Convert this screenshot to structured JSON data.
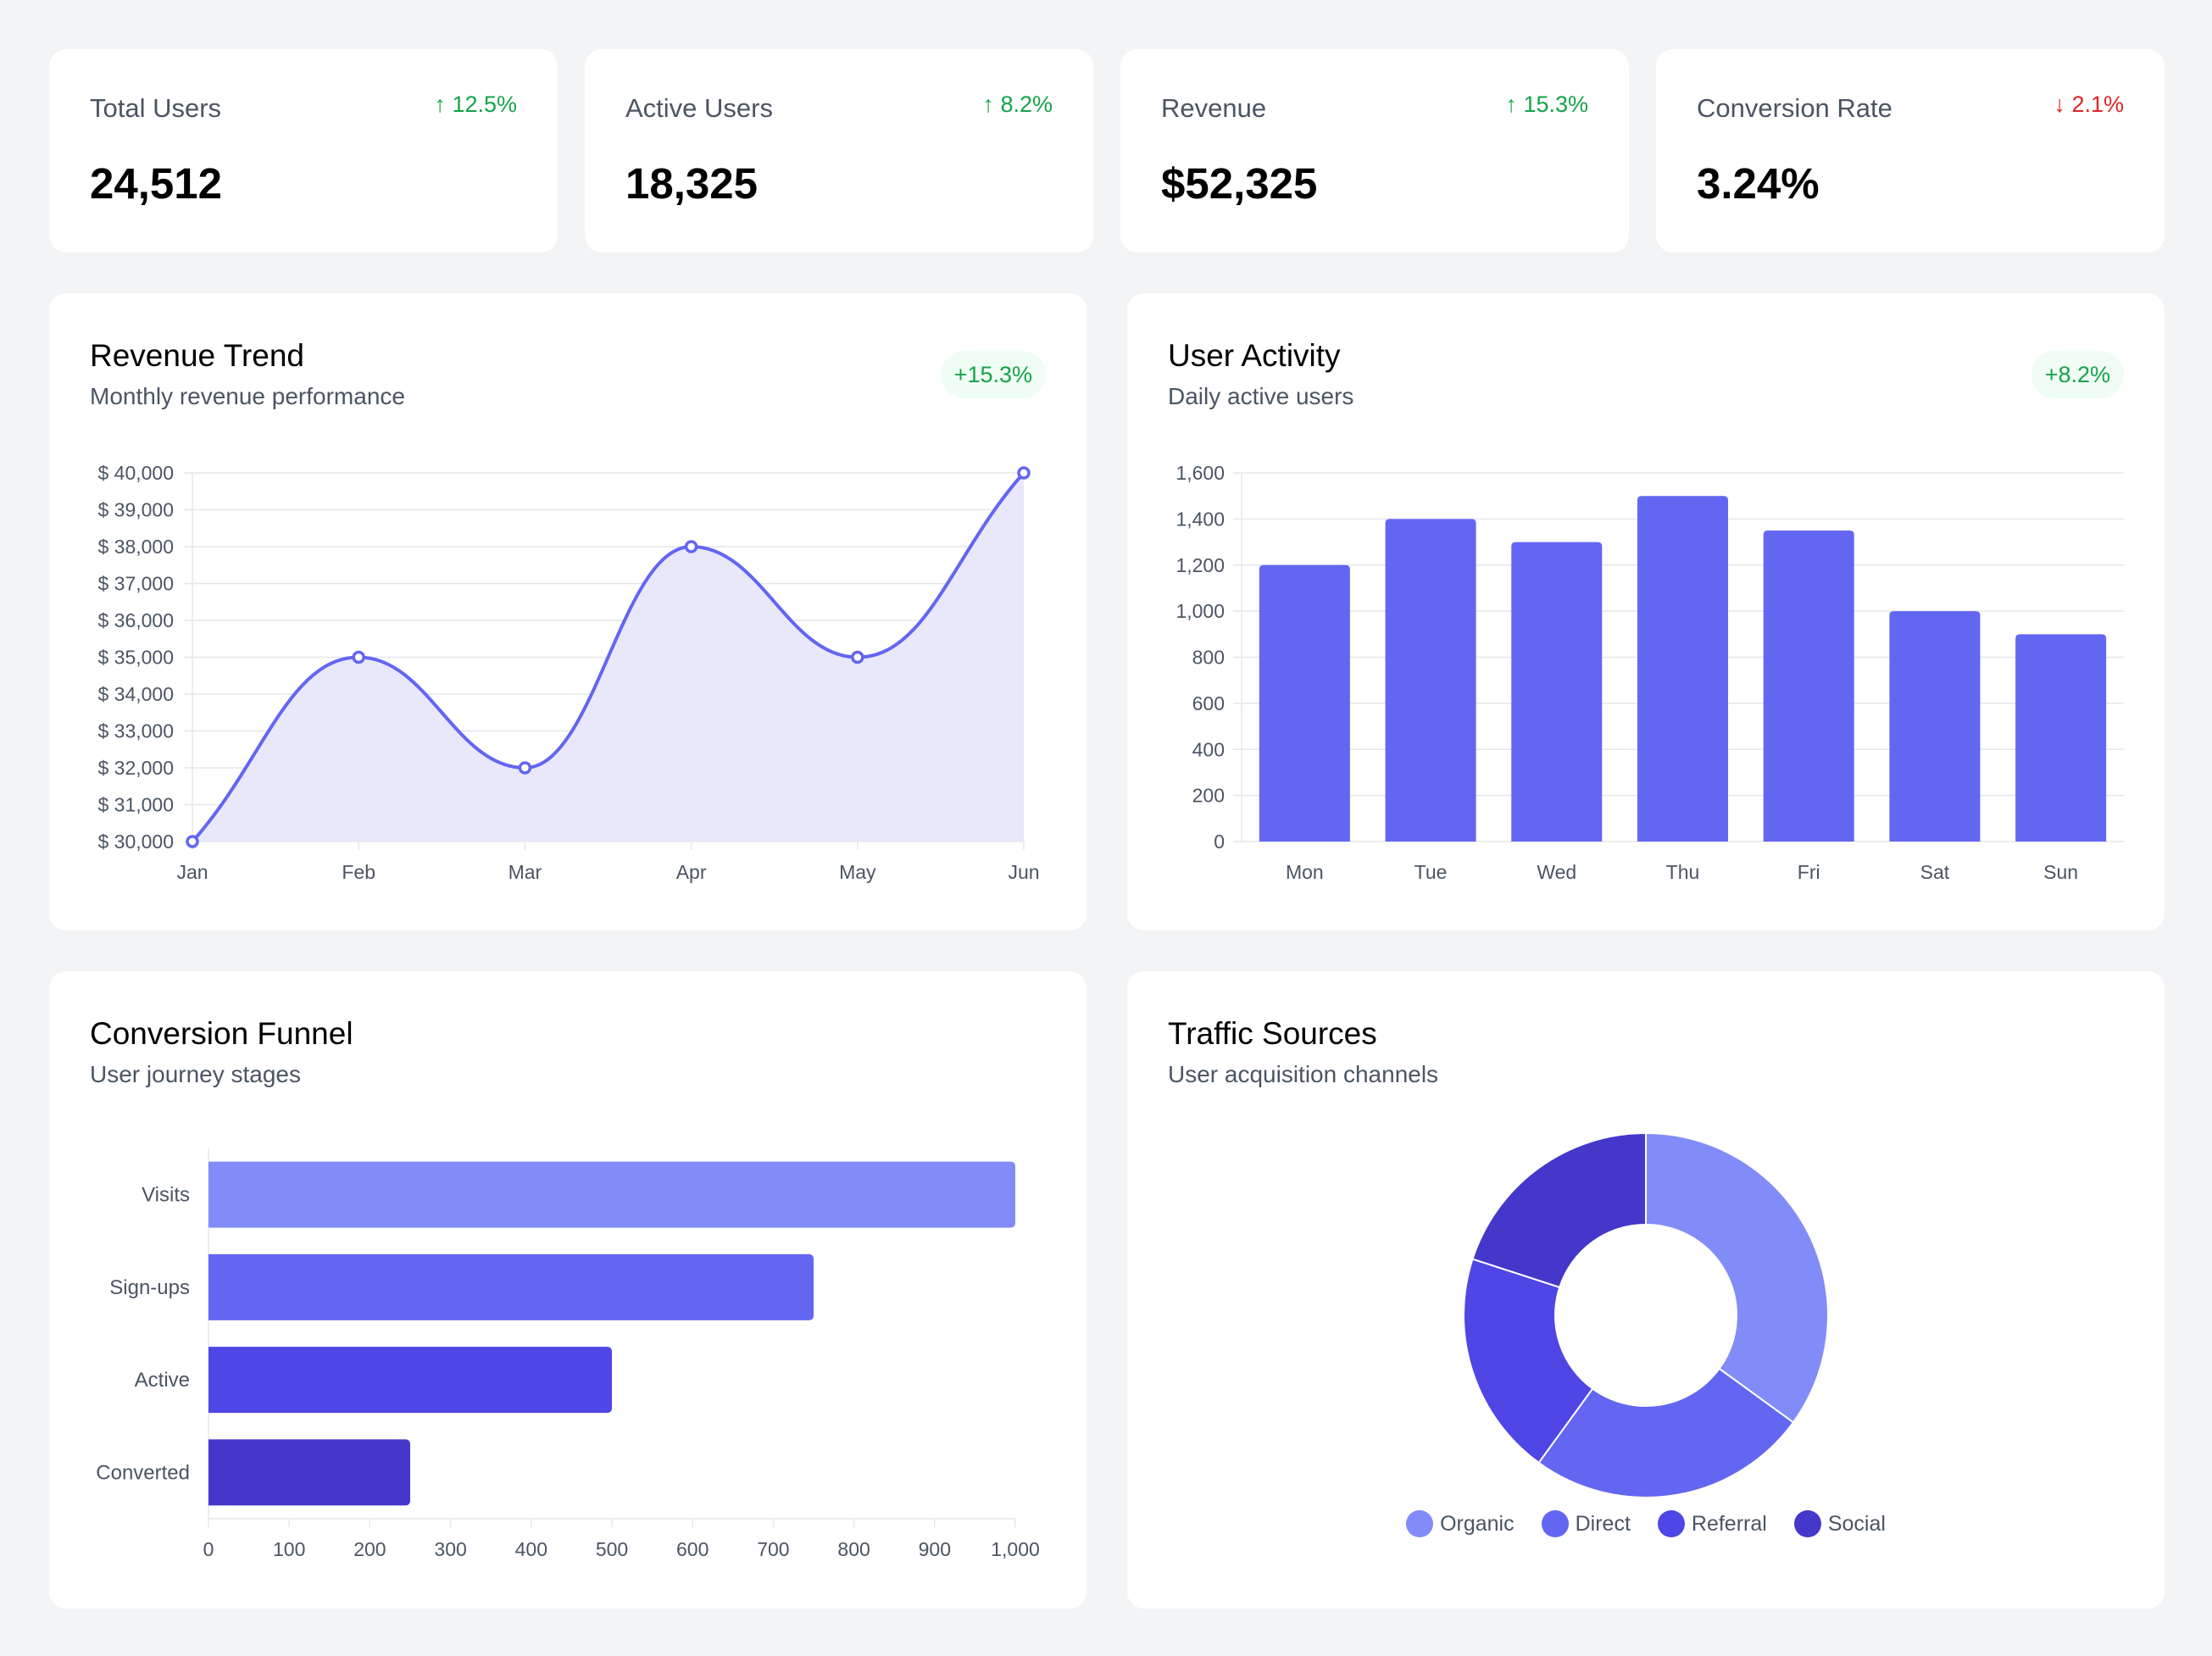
{
  "stats": [
    {
      "label": "Total Users",
      "value": "24,512",
      "change": "↑ 12.5%",
      "direction": "up"
    },
    {
      "label": "Active Users",
      "value": "18,325",
      "change": "↑ 8.2%",
      "direction": "up"
    },
    {
      "label": "Revenue",
      "value": "$52,325",
      "change": "↑ 15.3%",
      "direction": "up"
    },
    {
      "label": "Conversion Rate",
      "value": "3.24%",
      "change": "↓ 2.1%",
      "direction": "down"
    }
  ],
  "colors": {
    "accent": "#6366f1",
    "funnel": [
      "#818cf8",
      "#6366f1",
      "#4f46e5",
      "#4338ca"
    ],
    "pie": [
      "#818cf8",
      "#6366f1",
      "#4f46e5",
      "#4338ca"
    ],
    "area_fill": "#e8e8fa",
    "grid": "#e5e7eb",
    "tick": "#4b5563"
  },
  "charts": {
    "revenue": {
      "title": "Revenue Trend",
      "subtitle": "Monthly revenue performance",
      "badge": "+15.3%"
    },
    "activity": {
      "title": "User Activity",
      "subtitle": "Daily active users",
      "badge": "+8.2%"
    },
    "funnel": {
      "title": "Conversion Funnel",
      "subtitle": "User journey stages"
    },
    "traffic": {
      "title": "Traffic Sources",
      "subtitle": "User acquisition channels"
    }
  },
  "chart_data": [
    {
      "id": "revenue",
      "type": "line",
      "title": "Revenue Trend",
      "categories": [
        "Jan",
        "Feb",
        "Mar",
        "Apr",
        "May",
        "Jun"
      ],
      "values": [
        30000,
        35000,
        32000,
        38000,
        35000,
        40000
      ],
      "ylim": [
        30000,
        40000
      ],
      "yticks": [
        30000,
        31000,
        32000,
        33000,
        34000,
        35000,
        36000,
        37000,
        38000,
        39000,
        40000
      ],
      "ytick_labels": [
        "$ 30,000",
        "$ 31,000",
        "$ 32,000",
        "$ 33,000",
        "$ 34,000",
        "$ 35,000",
        "$ 36,000",
        "$ 37,000",
        "$ 38,000",
        "$ 39,000",
        "$ 40,000"
      ],
      "grid": true
    },
    {
      "id": "activity",
      "type": "bar",
      "title": "User Activity",
      "categories": [
        "Mon",
        "Tue",
        "Wed",
        "Thu",
        "Fri",
        "Sat",
        "Sun"
      ],
      "values": [
        1200,
        1400,
        1300,
        1500,
        1350,
        1000,
        900
      ],
      "ylim": [
        0,
        1600
      ],
      "yticks": [
        0,
        200,
        400,
        600,
        800,
        1000,
        1200,
        1400,
        1600
      ],
      "ytick_labels": [
        "0",
        "200",
        "400",
        "600",
        "800",
        "1,000",
        "1,200",
        "1,400",
        "1,600"
      ],
      "grid": true
    },
    {
      "id": "funnel",
      "type": "bar",
      "orientation": "horizontal",
      "title": "Conversion Funnel",
      "categories": [
        "Visits",
        "Sign-ups",
        "Active",
        "Converted"
      ],
      "values": [
        1000,
        750,
        500,
        250
      ],
      "xlim": [
        0,
        1000
      ],
      "xticks": [
        0,
        100,
        200,
        300,
        400,
        500,
        600,
        700,
        800,
        900,
        1000
      ],
      "xtick_labels": [
        "0",
        "100",
        "200",
        "300",
        "400",
        "500",
        "600",
        "700",
        "800",
        "900",
        "1,000"
      ],
      "grid": false
    },
    {
      "id": "traffic",
      "type": "pie",
      "donut": true,
      "title": "Traffic Sources",
      "labels": [
        "Organic",
        "Direct",
        "Referral",
        "Social"
      ],
      "values": [
        35,
        25,
        20,
        20
      ],
      "legend": "bottom"
    }
  ]
}
